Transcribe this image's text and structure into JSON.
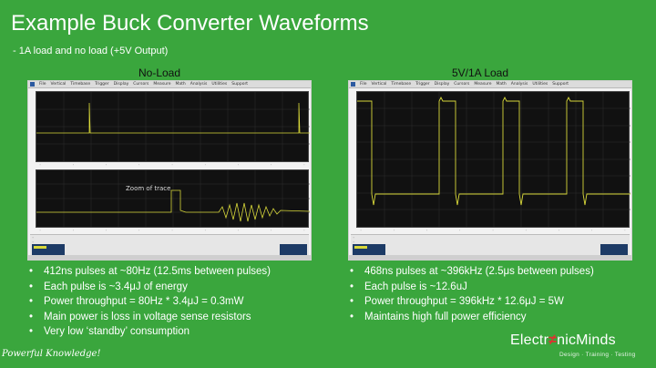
{
  "slide": {
    "title": "Example Buck Converter Waveforms",
    "subtitle": "- 1A load and no load (+5V Output)"
  },
  "left_panel": {
    "label": "No-Load",
    "zoom_label": "Zoom of trace",
    "status_left": "T01E3748 LeCroy"
  },
  "right_panel": {
    "label": "5V/1A Load"
  },
  "scope_menu": [
    "File",
    "Vertical",
    "Timebase",
    "Trigger",
    "Display",
    "Cursors",
    "Measure",
    "Math",
    "Analysis",
    "Utilities",
    "Support"
  ],
  "left_bullets": [
    "412ns pulses at ~80Hz (12.5ms between pulses)",
    "Each pulse is ~3.4μJ of energy",
    "Power throughput = 80Hz * 3.4μJ = 0.3mW",
    "Main power is loss in voltage sense resistors",
    "Very low ‘standby’ consumption"
  ],
  "right_bullets": [
    "468ns pulses at ~396kHz (2.5μs between pulses)",
    "Each pulse is ~12.6uJ",
    "Power throughput = 396kHz * 12.6μJ = 5W",
    "Maintains high full power efficiency"
  ],
  "footer": {
    "tagline": "Powerful Knowledge!",
    "brand_part1": "Electr",
    "brand_bolt": "≠",
    "brand_part2": "nicMinds",
    "brand_sub": "Design · Training · Testing"
  },
  "colors": {
    "background": "#3aa63d",
    "trace": "#d8d83a",
    "screen": "#111111"
  },
  "icons": [
    "scope-logo-icon"
  ]
}
